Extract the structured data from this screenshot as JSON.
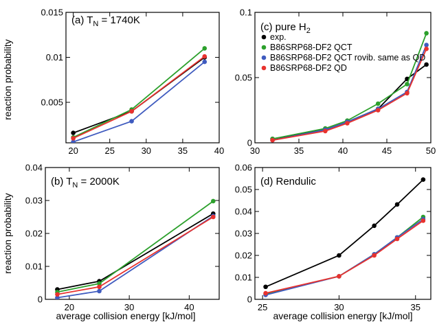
{
  "figure": {
    "shared_xlabel": "average collision energy [kJ/mol]",
    "shared_ylabel": "reaction probability"
  },
  "chart_data": [
    {
      "panel": "a",
      "type": "line",
      "title": "(a) T",
      "title_sub": "N",
      "title_suffix": " = 1740K",
      "xlabel": "",
      "ylabel": "reaction probability",
      "xlim": [
        19,
        40
      ],
      "ylim": [
        0.0005,
        0.015
      ],
      "xticks": [
        20,
        25,
        30,
        35,
        40
      ],
      "yticks": [
        0.005,
        0.01,
        0.015
      ],
      "ytick_labels": [
        "0.005",
        "0.01",
        "0.015"
      ],
      "legend": null,
      "series": [
        {
          "color": "#000000",
          "x": [
            20,
            28,
            38
          ],
          "y": [
            0.0016,
            0.004,
            0.01
          ]
        },
        {
          "color": "#2ca02c",
          "x": [
            20,
            28,
            38
          ],
          "y": [
            0.0011,
            0.0042,
            0.011
          ]
        },
        {
          "color": "#3f5bbf",
          "x": [
            20,
            28,
            38
          ],
          "y": [
            0.0006,
            0.0029,
            0.0095
          ]
        },
        {
          "color": "#e8322e",
          "x": [
            20,
            28,
            38
          ],
          "y": [
            0.001,
            0.004,
            0.0101
          ]
        }
      ]
    },
    {
      "panel": "b",
      "type": "line",
      "title": "(b) T",
      "title_sub": "N",
      "title_suffix": " = 2000K",
      "xlabel": "average collision energy [kJ/mol]",
      "ylabel": "reaction probability",
      "xlim": [
        16,
        45
      ],
      "ylim": [
        0,
        0.04
      ],
      "xticks": [
        20,
        30,
        40
      ],
      "yticks": [
        0,
        0.01,
        0.02,
        0.03,
        0.04
      ],
      "ytick_labels": [
        "0",
        "0.01",
        "0.02",
        "0.03",
        "0.04"
      ],
      "legend": null,
      "series": [
        {
          "color": "#000000",
          "x": [
            18,
            25,
            44
          ],
          "y": [
            0.003,
            0.0055,
            0.026
          ]
        },
        {
          "color": "#2ca02c",
          "x": [
            18,
            25,
            44
          ],
          "y": [
            0.0022,
            0.0048,
            0.0298
          ]
        },
        {
          "color": "#3f5bbf",
          "x": [
            18,
            25,
            44
          ],
          "y": [
            0.0005,
            0.0025,
            0.0253
          ]
        },
        {
          "color": "#e8322e",
          "x": [
            18,
            25,
            44
          ],
          "y": [
            0.0015,
            0.0038,
            0.025
          ]
        }
      ]
    },
    {
      "panel": "c",
      "type": "line",
      "title": "(c) pure H",
      "title_sub": "2",
      "title_suffix": "",
      "xlabel": "",
      "ylabel": "",
      "xlim": [
        30,
        50
      ],
      "ylim": [
        0,
        0.1
      ],
      "xticks": [
        30,
        35,
        40,
        45,
        50
      ],
      "yticks": [
        0,
        0.05,
        0.1
      ],
      "ytick_labels": [
        "0",
        "0.05",
        "0.1"
      ],
      "legend": "top-left",
      "series": [
        {
          "name": "exp.",
          "color": "#000000",
          "x": [
            32,
            38,
            40.5,
            44,
            47.3,
            49.5
          ],
          "y": [
            0.003,
            0.01,
            0.016,
            0.026,
            0.049,
            0.06
          ]
        },
        {
          "name": "B86SRP68-DF2 QCT",
          "color": "#2ca02c",
          "x": [
            32,
            38,
            40.5,
            44,
            47.3,
            49.5
          ],
          "y": [
            0.003,
            0.011,
            0.017,
            0.03,
            0.045,
            0.084
          ]
        },
        {
          "name": "B86SRP68-DF2 QCT rovib. same as QD",
          "color": "#3f5bbf",
          "x": [
            32,
            38,
            40.5,
            44,
            47.3,
            49.5
          ],
          "y": [
            0.002,
            0.01,
            0.016,
            0.026,
            0.039,
            0.075
          ]
        },
        {
          "name": "B86SRP68-DF2 QD",
          "color": "#e8322e",
          "x": [
            32,
            38,
            40.5,
            44,
            47.3,
            49.5
          ],
          "y": [
            0.002,
            0.009,
            0.015,
            0.025,
            0.038,
            0.072
          ]
        }
      ]
    },
    {
      "panel": "d",
      "type": "line",
      "title": "(d) Rendulic",
      "title_sub": "",
      "title_suffix": "",
      "xlabel": "average collision energy [kJ/mol]",
      "ylabel": "",
      "xlim": [
        24.5,
        36
      ],
      "ylim": [
        0,
        0.06
      ],
      "xticks": [
        25,
        30,
        35
      ],
      "yticks": [
        0,
        0.01,
        0.02,
        0.03,
        0.04,
        0.05,
        0.06
      ],
      "ytick_labels": [
        "0",
        "0.01",
        "0.02",
        "0.03",
        "0.04",
        "0.05",
        "0.06"
      ],
      "legend": null,
      "series": [
        {
          "color": "#000000",
          "x": [
            25.2,
            30,
            32.3,
            33.8,
            35.5
          ],
          "y": [
            0.0057,
            0.02,
            0.0335,
            0.0432,
            0.0545
          ]
        },
        {
          "color": "#2ca02c",
          "x": [
            25.2,
            30,
            32.3,
            33.8,
            35.5
          ],
          "y": [
            0.0025,
            0.0105,
            0.0205,
            0.0282,
            0.0375
          ]
        },
        {
          "color": "#3f5bbf",
          "x": [
            25.2,
            30,
            32.3,
            33.8,
            35.5
          ],
          "y": [
            0.002,
            0.0105,
            0.0205,
            0.0282,
            0.0365
          ]
        },
        {
          "color": "#e8322e",
          "x": [
            25.2,
            30,
            32.3,
            33.8,
            35.5
          ],
          "y": [
            0.0028,
            0.0105,
            0.02,
            0.0275,
            0.0358
          ]
        }
      ]
    }
  ]
}
